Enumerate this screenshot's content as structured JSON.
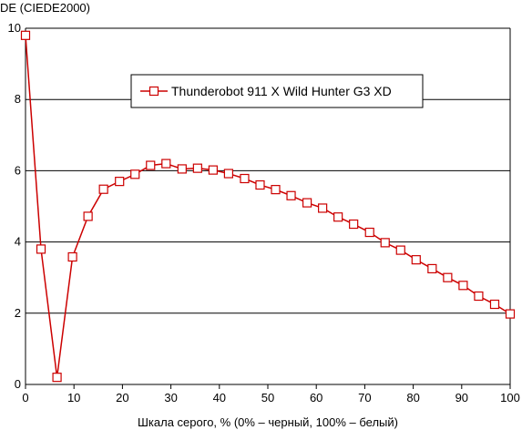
{
  "chart_data": {
    "type": "line",
    "title": "",
    "ylabel": "DE (CIEDE2000)",
    "xlabel": "Шкала серого, % (0% – черный, 100% – белый)",
    "xlim": [
      0,
      100
    ],
    "ylim": [
      0,
      10
    ],
    "xticks": [
      0,
      10,
      20,
      30,
      40,
      50,
      60,
      70,
      80,
      90,
      100
    ],
    "yticks": [
      0,
      2,
      4,
      6,
      8,
      10
    ],
    "grid": "horizontal",
    "legend_position": "top-center",
    "series": [
      {
        "name": "Thunderobot 911 X Wild Hunter G3 XD",
        "color": "#cc0000",
        "marker": "square-open",
        "x": [
          0,
          3.2,
          6.5,
          9.7,
          12.9,
          16.1,
          19.4,
          22.6,
          25.8,
          29.0,
          32.3,
          35.5,
          38.7,
          41.9,
          45.2,
          48.4,
          51.6,
          54.8,
          58.1,
          61.3,
          64.5,
          67.7,
          71.0,
          74.2,
          77.4,
          80.6,
          83.9,
          87.1,
          90.3,
          93.5,
          96.8,
          100
        ],
        "y": [
          9.8,
          3.8,
          0.2,
          3.58,
          4.72,
          5.48,
          5.7,
          5.9,
          6.15,
          6.2,
          6.05,
          6.07,
          6.02,
          5.92,
          5.78,
          5.6,
          5.47,
          5.3,
          5.1,
          4.95,
          4.7,
          4.5,
          4.27,
          3.98,
          3.77,
          3.5,
          3.25,
          3.0,
          2.78,
          2.48,
          2.25,
          1.98
        ]
      }
    ]
  }
}
